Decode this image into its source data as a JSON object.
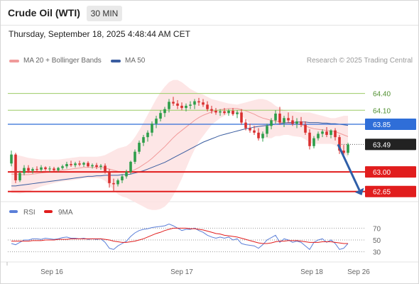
{
  "header": {
    "instrument": "Crude Oil (WTI)",
    "timeframe": "30 MIN"
  },
  "datetime": "Thursday, September 18, 2025 4:48:44 AM CET",
  "legend": [
    {
      "name": "MA 20 + Bollinger Bands",
      "color": "#f09a9a"
    },
    {
      "name": "MA 50",
      "color": "#3a5da0"
    }
  ],
  "copyright": "Research © 2025 Trading Central",
  "chart_data": {
    "type": "candlestick",
    "x_tick_labels": [
      "Sep 16",
      "Sep 17",
      "Sep 18",
      "Sep 26"
    ],
    "levels": [
      {
        "value": 64.4,
        "label": "64.40",
        "kind": "resistance",
        "color": "#9ccc65"
      },
      {
        "value": 64.1,
        "label": "64.10",
        "kind": "resistance",
        "color": "#9ccc65"
      },
      {
        "value": 63.85,
        "label": "63.85",
        "kind": "pivot",
        "color": "#2f6ed8"
      },
      {
        "value": 63.49,
        "label": "63.49",
        "kind": "last",
        "color": "#222222"
      },
      {
        "value": 63.0,
        "label": "63.00",
        "kind": "support",
        "color": "#e11d1d"
      },
      {
        "value": 62.65,
        "label": "62.65",
        "kind": "support",
        "color": "#e11d1d"
      }
    ],
    "ohlc": [
      [
        63.15,
        63.38,
        63.1,
        63.31
      ],
      [
        63.31,
        63.34,
        62.8,
        62.85
      ],
      [
        62.85,
        63.02,
        62.82,
        62.98
      ],
      [
        62.98,
        63.12,
        62.94,
        63.07
      ],
      [
        63.07,
        63.12,
        62.98,
        63.02
      ],
      [
        63.02,
        63.08,
        62.97,
        63.05
      ],
      [
        63.05,
        63.1,
        63.0,
        63.04
      ],
      [
        63.04,
        63.12,
        63.0,
        63.08
      ],
      [
        63.08,
        63.1,
        63.02,
        63.05
      ],
      [
        63.05,
        63.1,
        63.0,
        63.06
      ],
      [
        63.06,
        63.09,
        63.01,
        63.03
      ],
      [
        63.03,
        63.09,
        63.0,
        63.07
      ],
      [
        63.07,
        63.13,
        63.04,
        63.1
      ],
      [
        63.1,
        63.18,
        63.06,
        63.14
      ],
      [
        63.14,
        63.2,
        63.09,
        63.12
      ],
      [
        63.12,
        63.18,
        63.08,
        63.15
      ],
      [
        63.15,
        63.2,
        63.1,
        63.13
      ],
      [
        63.13,
        63.18,
        63.09,
        63.16
      ],
      [
        63.16,
        63.19,
        63.08,
        63.1
      ],
      [
        63.1,
        63.15,
        63.06,
        63.12
      ],
      [
        63.12,
        63.16,
        63.05,
        63.09
      ],
      [
        63.09,
        63.14,
        63.04,
        63.11
      ],
      [
        63.11,
        63.15,
        62.97,
        63.0
      ],
      [
        63.0,
        63.05,
        62.72,
        62.8
      ],
      [
        62.8,
        62.88,
        62.65,
        62.78
      ],
      [
        62.78,
        62.88,
        62.74,
        62.85
      ],
      [
        62.85,
        62.96,
        62.8,
        62.92
      ],
      [
        62.92,
        63.04,
        62.88,
        63.0
      ],
      [
        63.0,
        63.2,
        62.96,
        63.18
      ],
      [
        63.18,
        63.4,
        63.14,
        63.36
      ],
      [
        63.36,
        63.56,
        63.32,
        63.52
      ],
      [
        63.52,
        63.66,
        63.46,
        63.62
      ],
      [
        63.62,
        63.74,
        63.54,
        63.7
      ],
      [
        63.7,
        63.9,
        63.64,
        63.86
      ],
      [
        63.86,
        64.0,
        63.78,
        63.95
      ],
      [
        63.95,
        64.1,
        63.9,
        64.05
      ],
      [
        64.05,
        64.16,
        63.98,
        64.12
      ],
      [
        64.12,
        64.3,
        64.06,
        64.25
      ],
      [
        64.25,
        64.34,
        64.18,
        64.22
      ],
      [
        64.22,
        64.28,
        64.12,
        64.18
      ],
      [
        64.18,
        64.24,
        64.1,
        64.14
      ],
      [
        64.14,
        64.22,
        64.08,
        64.18
      ],
      [
        64.18,
        64.26,
        64.12,
        64.2
      ],
      [
        64.2,
        64.3,
        64.12,
        64.26
      ],
      [
        64.26,
        64.32,
        64.18,
        64.24
      ],
      [
        64.24,
        64.3,
        64.16,
        64.2
      ],
      [
        64.2,
        64.26,
        64.08,
        64.12
      ],
      [
        64.12,
        64.18,
        64.04,
        64.09
      ],
      [
        64.09,
        64.14,
        64.02,
        64.06
      ],
      [
        64.06,
        64.12,
        64.0,
        64.08
      ],
      [
        64.08,
        64.14,
        64.02,
        64.05
      ],
      [
        64.05,
        64.12,
        64.0,
        64.09
      ],
      [
        64.09,
        64.14,
        64.0,
        64.03
      ],
      [
        64.03,
        64.1,
        63.96,
        64.06
      ],
      [
        64.06,
        64.12,
        63.84,
        63.88
      ],
      [
        63.88,
        63.94,
        63.74,
        63.78
      ],
      [
        63.78,
        63.86,
        63.7,
        63.74
      ],
      [
        63.74,
        63.82,
        63.66,
        63.7
      ],
      [
        63.7,
        63.78,
        63.56,
        63.6
      ],
      [
        63.6,
        63.72,
        63.54,
        63.68
      ],
      [
        63.68,
        63.86,
        63.62,
        63.82
      ],
      [
        63.82,
        63.96,
        63.76,
        63.92
      ],
      [
        63.92,
        64.1,
        63.86,
        64.04
      ],
      [
        64.04,
        64.16,
        63.84,
        63.88
      ],
      [
        63.88,
        64.0,
        63.8,
        63.96
      ],
      [
        63.96,
        64.06,
        63.88,
        63.92
      ],
      [
        63.92,
        64.0,
        63.82,
        63.86
      ],
      [
        63.86,
        63.96,
        63.78,
        63.9
      ],
      [
        63.9,
        63.98,
        63.8,
        63.84
      ],
      [
        63.84,
        63.9,
        63.66,
        63.7
      ],
      [
        63.7,
        63.76,
        63.4,
        63.46
      ],
      [
        63.46,
        63.64,
        63.42,
        63.6
      ],
      [
        63.6,
        63.72,
        63.56,
        63.68
      ],
      [
        63.68,
        63.76,
        63.62,
        63.72
      ],
      [
        63.72,
        63.8,
        63.62,
        63.66
      ],
      [
        63.66,
        63.76,
        63.6,
        63.74
      ],
      [
        63.74,
        63.78,
        63.56,
        63.62
      ],
      [
        63.62,
        63.66,
        63.32,
        63.38
      ],
      [
        63.38,
        63.48,
        63.24,
        63.34
      ],
      [
        63.34,
        63.52,
        63.3,
        63.49
      ]
    ],
    "ma20": [
      62.96,
      62.96,
      62.95,
      62.95,
      62.95,
      62.96,
      62.97,
      62.98,
      62.99,
      63.0,
      63.01,
      63.02,
      63.03,
      63.04,
      63.05,
      63.06,
      63.07,
      63.08,
      63.08,
      63.08,
      63.08,
      63.08,
      63.07,
      63.05,
      63.03,
      63.01,
      63.0,
      63.0,
      63.01,
      63.04,
      63.08,
      63.13,
      63.18,
      63.24,
      63.31,
      63.38,
      63.45,
      63.53,
      63.61,
      63.68,
      63.74,
      63.8,
      63.86,
      63.92,
      63.97,
      64.01,
      64.04,
      64.07,
      64.09,
      64.11,
      64.12,
      64.13,
      64.13,
      64.13,
      64.11,
      64.09,
      64.06,
      64.03,
      63.99,
      63.96,
      63.94,
      63.92,
      63.91,
      63.89,
      63.88,
      63.87,
      63.86,
      63.85,
      63.84,
      63.82,
      63.79,
      63.77,
      63.76,
      63.75,
      63.74,
      63.73,
      63.72,
      63.69,
      63.66,
      63.63
    ],
    "bb_upper": [
      63.3,
      63.3,
      63.29,
      63.27,
      63.25,
      63.24,
      63.23,
      63.22,
      63.22,
      63.22,
      63.22,
      63.22,
      63.23,
      63.24,
      63.25,
      63.26,
      63.27,
      63.27,
      63.27,
      63.27,
      63.27,
      63.28,
      63.3,
      63.34,
      63.38,
      63.42,
      63.44,
      63.46,
      63.52,
      63.62,
      63.74,
      63.88,
      64.02,
      64.16,
      64.3,
      64.42,
      64.52,
      64.6,
      64.64,
      64.64,
      64.6,
      64.54,
      64.48,
      64.44,
      64.4,
      64.38,
      64.34,
      64.3,
      64.28,
      64.26,
      64.24,
      64.22,
      64.21,
      64.2,
      64.22,
      64.24,
      64.26,
      64.28,
      64.3,
      64.3,
      64.28,
      64.24,
      64.18,
      64.14,
      64.1,
      64.08,
      64.08,
      64.07,
      64.06,
      64.06,
      64.06,
      64.04,
      64.02,
      64.0,
      63.98,
      63.96,
      63.96,
      63.98,
      64.0,
      64.0
    ],
    "bb_lower": [
      62.62,
      62.62,
      62.61,
      62.63,
      62.65,
      62.68,
      62.71,
      62.74,
      62.76,
      62.78,
      62.8,
      62.82,
      62.83,
      62.84,
      62.85,
      62.86,
      62.87,
      62.89,
      62.89,
      62.89,
      62.89,
      62.88,
      62.84,
      62.76,
      62.68,
      62.6,
      62.56,
      62.54,
      62.5,
      62.46,
      62.42,
      62.38,
      62.34,
      62.32,
      62.32,
      62.34,
      62.38,
      62.46,
      62.58,
      62.72,
      62.88,
      63.06,
      63.24,
      63.4,
      63.54,
      63.64,
      63.74,
      63.84,
      63.9,
      63.96,
      64.0,
      64.04,
      64.05,
      64.06,
      64.0,
      63.94,
      63.86,
      63.78,
      63.68,
      63.62,
      63.6,
      63.6,
      63.64,
      63.64,
      63.66,
      63.66,
      63.64,
      63.63,
      63.62,
      63.58,
      63.52,
      63.5,
      63.5,
      63.5,
      63.5,
      63.5,
      63.48,
      63.4,
      63.32,
      63.26
    ],
    "ma50": [
      62.75,
      62.75,
      62.76,
      62.77,
      62.78,
      62.79,
      62.8,
      62.81,
      62.82,
      62.83,
      62.84,
      62.85,
      62.86,
      62.87,
      62.88,
      62.89,
      62.9,
      62.91,
      62.92,
      62.92,
      62.93,
      62.93,
      62.94,
      62.94,
      62.94,
      62.94,
      62.95,
      62.95,
      62.96,
      62.98,
      63.0,
      63.02,
      63.05,
      63.08,
      63.11,
      63.14,
      63.17,
      63.21,
      63.25,
      63.29,
      63.33,
      63.37,
      63.41,
      63.45,
      63.49,
      63.53,
      63.56,
      63.59,
      63.62,
      63.65,
      63.67,
      63.69,
      63.71,
      63.73,
      63.75,
      63.77,
      63.78,
      63.8,
      63.81,
      63.82,
      63.83,
      63.84,
      63.85,
      63.86,
      63.87,
      63.88,
      63.88,
      63.89,
      63.89,
      63.89,
      63.88,
      63.88,
      63.88,
      63.87,
      63.87,
      63.86,
      63.86,
      63.85,
      63.84,
      63.83
    ],
    "rsi": [
      44,
      42,
      46,
      50,
      50,
      52,
      52,
      51,
      53,
      52,
      51,
      52,
      54,
      55,
      53,
      53,
      52,
      53,
      51,
      52,
      51,
      52,
      46,
      36,
      34,
      40,
      44,
      48,
      56,
      62,
      66,
      68,
      69,
      71,
      72,
      73,
      74,
      77,
      74,
      70,
      66,
      68,
      68,
      70,
      66,
      63,
      58,
      55,
      53,
      55,
      53,
      55,
      50,
      52,
      44,
      42,
      41,
      40,
      36,
      42,
      50,
      54,
      58,
      46,
      52,
      50,
      46,
      48,
      46,
      40,
      34,
      46,
      50,
      52,
      46,
      50,
      44,
      34,
      36,
      44
    ],
    "rsi_ma": [
      48,
      48,
      48,
      48,
      48,
      49,
      49,
      49,
      50,
      50,
      50,
      51,
      51,
      51,
      52,
      52,
      52,
      52,
      52,
      52,
      52,
      52,
      51,
      50,
      48,
      47,
      46,
      46,
      47,
      48,
      50,
      52,
      55,
      58,
      61,
      63,
      66,
      68,
      70,
      70,
      70,
      70,
      69,
      69,
      68,
      67,
      65,
      63,
      61,
      60,
      58,
      57,
      56,
      55,
      53,
      51,
      49,
      47,
      45,
      44,
      44,
      45,
      47,
      48,
      48,
      49,
      49,
      49,
      48,
      47,
      46,
      46,
      46,
      47,
      47,
      47,
      46,
      45,
      44,
      44
    ],
    "rsi_axis_labels": [
      "70",
      "50",
      "30"
    ],
    "rsi_legend": [
      {
        "name": "RSI",
        "color": "#5b7fd8"
      },
      {
        "name": "9MA",
        "color": "#e11d1d"
      }
    ],
    "forecast_arrow": {
      "from": 63.49,
      "to": 62.65
    },
    "colors": {
      "up": "#2e9e4a",
      "down": "#d93030",
      "band": "#fde2e2"
    }
  }
}
